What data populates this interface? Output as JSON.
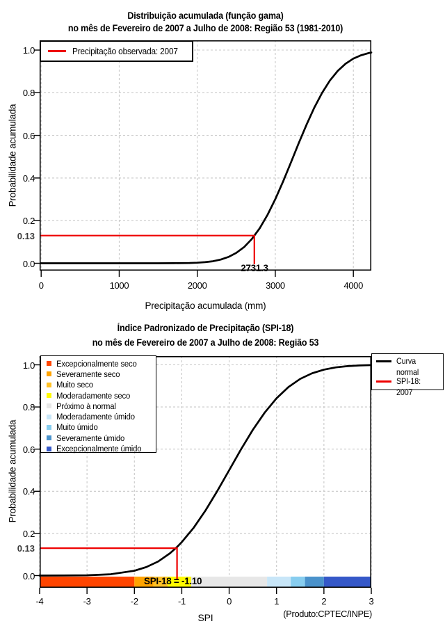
{
  "footnote": "(Produto:CPTEC/INPE)",
  "colors": {
    "annotation_red": "#EE0000",
    "curve_black": "#000000",
    "grid_gray": "#C8C8C8"
  },
  "chart_data": [
    {
      "type": "line",
      "title1": "Distribuição acumulada (função gama)",
      "title2": "no mês de Fevereiro de 2007 a Julho de 2008: Região 53 (1981-2010)",
      "xlabel": "Precipitação acumulada (mm)",
      "ylabel": "Probabilidade acumulada",
      "xlim": [
        0,
        4230
      ],
      "ylim": [
        0,
        1
      ],
      "grid": true,
      "x_ticks": [
        0,
        1000,
        2000,
        3000,
        4000
      ],
      "x_tick_labels": [
        "0",
        "1000",
        "2000",
        "3000",
        "4000"
      ],
      "y_ticks": [
        0,
        0.2,
        0.4,
        0.6,
        0.8,
        1.0
      ],
      "y_tick_labels": [
        "0.0",
        "0.2",
        "0.4",
        "0.6",
        "0.8",
        "1.0"
      ],
      "legend": [
        {
          "label": "Precipitação observada: 2007",
          "color": "#EE0000"
        }
      ],
      "series": [
        {
          "name": "Distribuição acumulada (função gama)",
          "color": "#000000",
          "x": [
            0,
            300,
            600,
            900,
            1200,
            1500,
            1700,
            1900,
            2000,
            2100,
            2200,
            2300,
            2400,
            2500,
            2600,
            2700,
            2731.3,
            2800,
            2900,
            3000,
            3100,
            3200,
            3300,
            3400,
            3500,
            3600,
            3700,
            3800,
            3900,
            4000,
            4100,
            4200,
            4230
          ],
          "y": [
            0,
            0,
            0,
            0,
            0,
            0.0001,
            0.0003,
            0.0013,
            0.0026,
            0.0051,
            0.0096,
            0.0173,
            0.0296,
            0.0485,
            0.0761,
            0.1142,
            0.13,
            0.1642,
            0.2266,
            0.3005,
            0.384,
            0.4729,
            0.5632,
            0.6503,
            0.7304,
            0.7998,
            0.8573,
            0.9024,
            0.9361,
            0.9599,
            0.976,
            0.9863,
            0.9885
          ]
        }
      ],
      "annotation": {
        "prob": 0.13,
        "prob_label": "0.13",
        "value": 2731.3,
        "value_label": "2731.3",
        "color": "#EE0000"
      }
    },
    {
      "type": "line",
      "title1": "Índice Padronizado de Precipitação (SPI-18)",
      "title2": "no mês de Fevereiro de 2007 a Julho de 2008: Região 53",
      "xlabel": "SPI",
      "ylabel": "Probabilidade acumulada",
      "xlim": [
        -4,
        3
      ],
      "ylim": [
        0,
        1
      ],
      "grid": true,
      "x_ticks": [
        -4,
        -3,
        -2,
        -1,
        0,
        1,
        2,
        3
      ],
      "x_tick_labels": [
        "-4",
        "-3",
        "-2",
        "-1",
        "0",
        "1",
        "2",
        "3"
      ],
      "y_ticks": [
        0,
        0.2,
        0.4,
        0.6,
        0.8,
        1.0
      ],
      "y_tick_labels": [
        "0.0",
        "0.2",
        "0.4",
        "0.6",
        "0.8",
        "1.0"
      ],
      "legend_right": [
        {
          "label": "Curva normal",
          "color": "#000000"
        },
        {
          "label": "SPI-18: 2007",
          "color": "#EE0000"
        }
      ],
      "categories": [
        {
          "label": "Excepcionalmente seco",
          "color": "#FF4500",
          "range": [
            -4,
            -2
          ]
        },
        {
          "label": "Severamente seco",
          "color": "#FFA300",
          "range": [
            -2,
            -1.6
          ]
        },
        {
          "label": "Muito seco",
          "color": "#FFC125",
          "range": [
            -1.6,
            -1.3
          ]
        },
        {
          "label": "Moderadamente seco",
          "color": "#FFFA00",
          "range": [
            -1.3,
            -0.8
          ]
        },
        {
          "label": "Próximo à normal",
          "color": "#E7E7E7",
          "range": [
            -0.8,
            0.8
          ]
        },
        {
          "label": "Moderadamente úmido",
          "color": "#C8E6F8",
          "range": [
            0.8,
            1.3
          ]
        },
        {
          "label": "Muito úmido",
          "color": "#87CDEF",
          "range": [
            1.3,
            1.6
          ]
        },
        {
          "label": "Severamente úmido",
          "color": "#4A92CB",
          "range": [
            1.6,
            2
          ]
        },
        {
          "label": "Excepcionalmente úmido",
          "color": "#3558C8",
          "range": [
            2,
            3
          ]
        }
      ],
      "series": [
        {
          "name": "Curva normal",
          "color": "#000000",
          "x": [
            -4,
            -3.5,
            -3,
            -2.5,
            -2,
            -1.75,
            -1.5,
            -1.25,
            -1.1,
            -1,
            -0.75,
            -0.5,
            -0.25,
            0,
            0.25,
            0.5,
            0.75,
            1,
            1.25,
            1.5,
            1.75,
            2,
            2.25,
            2.5,
            2.75,
            3
          ],
          "y": [
            3e-05,
            0.0002,
            0.0013,
            0.0062,
            0.0228,
            0.0401,
            0.0668,
            0.1056,
            0.1357,
            0.1587,
            0.2266,
            0.3085,
            0.4013,
            0.5,
            0.5987,
            0.6915,
            0.7734,
            0.8413,
            0.8944,
            0.9332,
            0.9599,
            0.9772,
            0.9878,
            0.9938,
            0.997,
            0.9987
          ]
        }
      ],
      "annotation": {
        "prob": 0.13,
        "prob_label": "0.13",
        "spi": -1.1,
        "spi_label": "SPI-18 = -1.10",
        "color": "#EE0000"
      }
    }
  ]
}
